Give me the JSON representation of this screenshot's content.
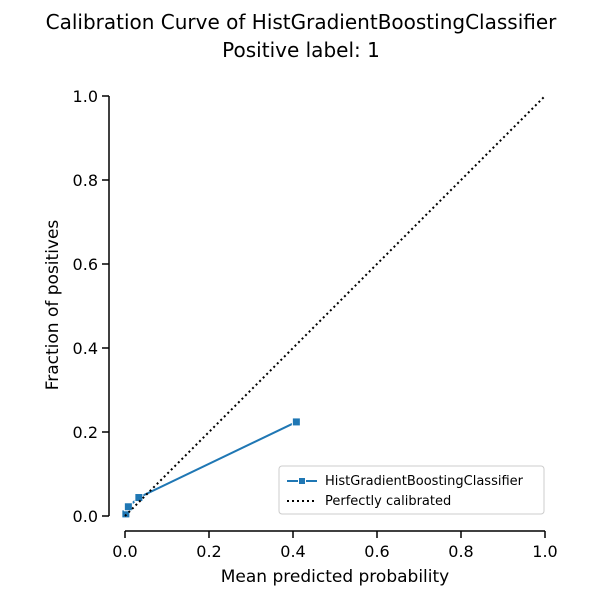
{
  "chart_data": {
    "type": "line",
    "title": "Calibration Curve of HistGradientBoostingClassifier",
    "subtitle": "Positive label: 1",
    "xlabel": "Mean predicted probability",
    "ylabel": "Fraction of positives",
    "xlim": [
      0.0,
      1.0
    ],
    "ylim": [
      0.0,
      1.0
    ],
    "xticks": [
      0.0,
      0.2,
      0.4,
      0.6,
      0.8,
      1.0
    ],
    "yticks": [
      0.0,
      0.2,
      0.4,
      0.6,
      0.8,
      1.0
    ],
    "xtick_labels": [
      "0.0",
      "0.2",
      "0.4",
      "0.6",
      "0.8",
      "1.0"
    ],
    "ytick_labels": [
      "0.0",
      "0.2",
      "0.4",
      "0.6",
      "0.8",
      "1.0"
    ],
    "grid": false,
    "legend_position": "lower-right",
    "series": [
      {
        "name": "HistGradientBoostingClassifier",
        "color": "#1f77b4",
        "marker": "square",
        "x": [
          0.002,
          0.008,
          0.033,
          0.408
        ],
        "y": [
          0.005,
          0.022,
          0.044,
          0.224
        ]
      },
      {
        "name": "Perfectly calibrated",
        "color": "#000000",
        "style": "dotted",
        "x": [
          0.0,
          1.0
        ],
        "y": [
          0.0,
          1.0
        ]
      }
    ]
  }
}
